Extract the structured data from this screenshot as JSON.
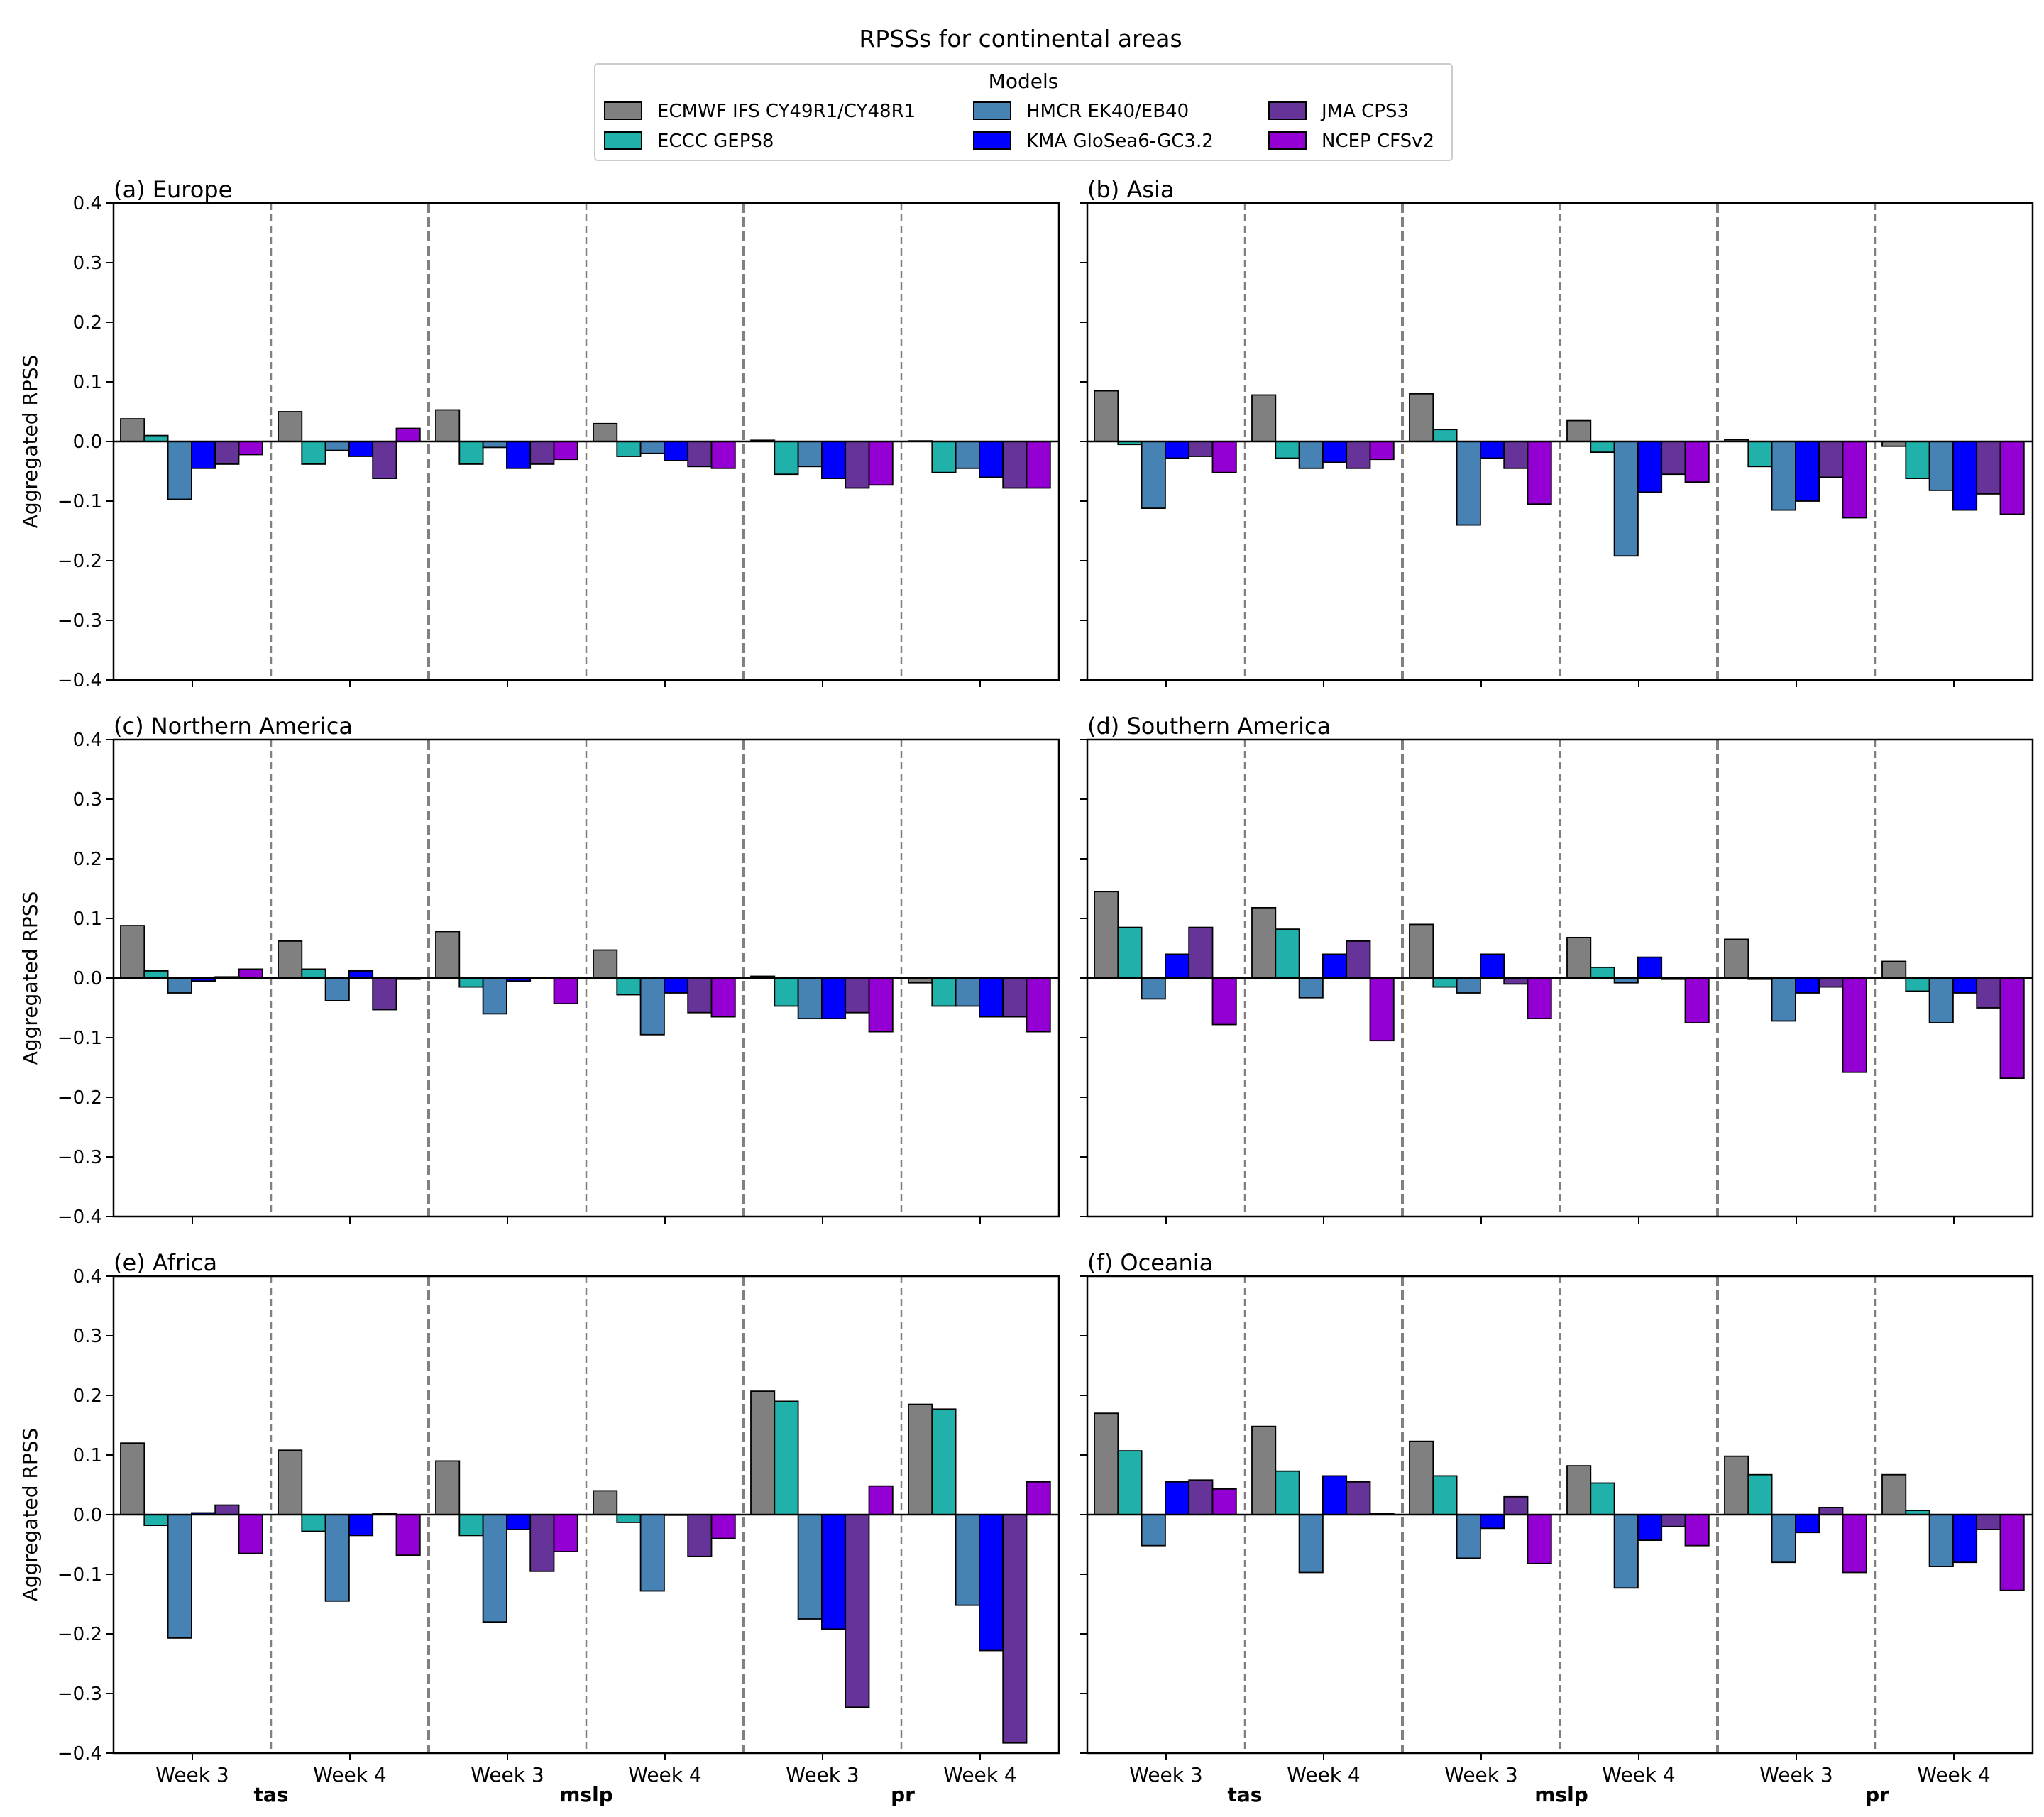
{
  "figure": {
    "title": "RPSSs for continental areas"
  },
  "legend": {
    "title": "Models"
  },
  "chart_data": {
    "type": "bar",
    "ylabel": "Aggregated RPSS",
    "ylim": [
      -0.4,
      0.4
    ],
    "yticks": [
      "0.4",
      "0.3",
      "0.2",
      "0.1",
      "0.0",
      "−0.1",
      "−0.2",
      "−0.3",
      "−0.4"
    ],
    "ytick_values": [
      0.4,
      0.3,
      0.2,
      0.1,
      0.0,
      -0.1,
      -0.2,
      -0.3,
      -0.4
    ],
    "categories": [
      "Week 3",
      "Week 4",
      "Week 3",
      "Week 4",
      "Week 3",
      "Week 4"
    ],
    "variables": [
      "tas",
      "mslp",
      "pr"
    ],
    "models": [
      {
        "name": "ECMWF IFS CY49R1/CY48R1",
        "color": "#808080"
      },
      {
        "name": "ECCC GEPS8",
        "color": "#20b2aa"
      },
      {
        "name": "HMCR EK40/EB40",
        "color": "#4682b4"
      },
      {
        "name": "KMA GloSea6-GC3.2",
        "color": "#0000ff"
      },
      {
        "name": "JMA CPS3",
        "color": "#663399"
      },
      {
        "name": "NCEP CFSv2",
        "color": "#9400d3"
      }
    ],
    "panels": [
      {
        "title": "(a) Europe",
        "values": [
          [
            0.038,
            0.01,
            -0.097,
            -0.045,
            -0.038,
            -0.022
          ],
          [
            0.05,
            -0.038,
            -0.015,
            -0.025,
            -0.062,
            0.022
          ],
          [
            0.053,
            -0.038,
            -0.01,
            -0.045,
            -0.038,
            -0.03
          ],
          [
            0.03,
            -0.025,
            -0.02,
            -0.032,
            -0.042,
            -0.045
          ],
          [
            0.002,
            -0.055,
            -0.042,
            -0.062,
            -0.078,
            -0.073
          ],
          [
            0.001,
            -0.052,
            -0.045,
            -0.06,
            -0.078,
            -0.078
          ]
        ]
      },
      {
        "title": "(b) Asia",
        "values": [
          [
            0.085,
            -0.005,
            -0.112,
            -0.028,
            -0.025,
            -0.052
          ],
          [
            0.078,
            -0.028,
            -0.045,
            -0.035,
            -0.045,
            -0.03
          ],
          [
            0.08,
            0.02,
            -0.14,
            -0.028,
            -0.045,
            -0.105
          ],
          [
            0.035,
            -0.018,
            -0.192,
            -0.085,
            -0.055,
            -0.068
          ],
          [
            0.003,
            -0.042,
            -0.115,
            -0.1,
            -0.06,
            -0.128
          ],
          [
            -0.008,
            -0.062,
            -0.082,
            -0.115,
            -0.088,
            -0.122
          ]
        ]
      },
      {
        "title": "(c) Northern America",
        "values": [
          [
            0.088,
            0.012,
            -0.025,
            -0.005,
            0.002,
            0.015
          ],
          [
            0.062,
            0.015,
            -0.038,
            0.012,
            -0.053,
            -0.002
          ],
          [
            0.078,
            -0.015,
            -0.06,
            -0.005,
            0.0,
            -0.043
          ],
          [
            0.047,
            -0.028,
            -0.095,
            -0.025,
            -0.058,
            -0.065
          ],
          [
            0.003,
            -0.047,
            -0.068,
            -0.068,
            -0.058,
            -0.09
          ],
          [
            -0.008,
            -0.047,
            -0.047,
            -0.065,
            -0.065,
            -0.09
          ]
        ]
      },
      {
        "title": "(d) Southern America",
        "values": [
          [
            0.145,
            0.085,
            -0.035,
            0.04,
            0.085,
            -0.078
          ],
          [
            0.118,
            0.082,
            -0.033,
            0.04,
            0.062,
            -0.105
          ],
          [
            0.09,
            -0.015,
            -0.025,
            0.04,
            -0.01,
            -0.068
          ],
          [
            0.068,
            0.018,
            -0.008,
            0.035,
            -0.002,
            -0.075
          ],
          [
            0.065,
            -0.002,
            -0.072,
            -0.025,
            -0.015,
            -0.158
          ],
          [
            0.028,
            -0.022,
            -0.075,
            -0.025,
            -0.05,
            -0.168
          ]
        ]
      },
      {
        "title": "(e) Africa",
        "values": [
          [
            0.12,
            -0.018,
            -0.207,
            0.003,
            0.016,
            -0.065
          ],
          [
            0.108,
            -0.028,
            -0.145,
            -0.035,
            0.002,
            -0.068
          ],
          [
            0.09,
            -0.035,
            -0.18,
            -0.025,
            -0.095,
            -0.062
          ],
          [
            0.04,
            -0.013,
            -0.128,
            0.0,
            -0.07,
            -0.04
          ],
          [
            0.207,
            0.19,
            -0.175,
            -0.192,
            -0.323,
            0.048
          ],
          [
            0.185,
            0.177,
            -0.152,
            -0.228,
            -0.383,
            0.055
          ]
        ]
      },
      {
        "title": "(f) Oceania",
        "values": [
          [
            0.17,
            0.107,
            -0.052,
            0.055,
            0.058,
            0.043
          ],
          [
            0.148,
            0.073,
            -0.097,
            0.065,
            0.055,
            0.002
          ],
          [
            0.123,
            0.065,
            -0.073,
            -0.023,
            0.03,
            -0.082
          ],
          [
            0.082,
            0.053,
            -0.123,
            -0.043,
            -0.02,
            -0.052
          ],
          [
            0.098,
            0.067,
            -0.08,
            -0.03,
            0.012,
            -0.097
          ],
          [
            0.067,
            0.007,
            -0.087,
            -0.08,
            -0.025,
            -0.127
          ]
        ]
      }
    ]
  }
}
